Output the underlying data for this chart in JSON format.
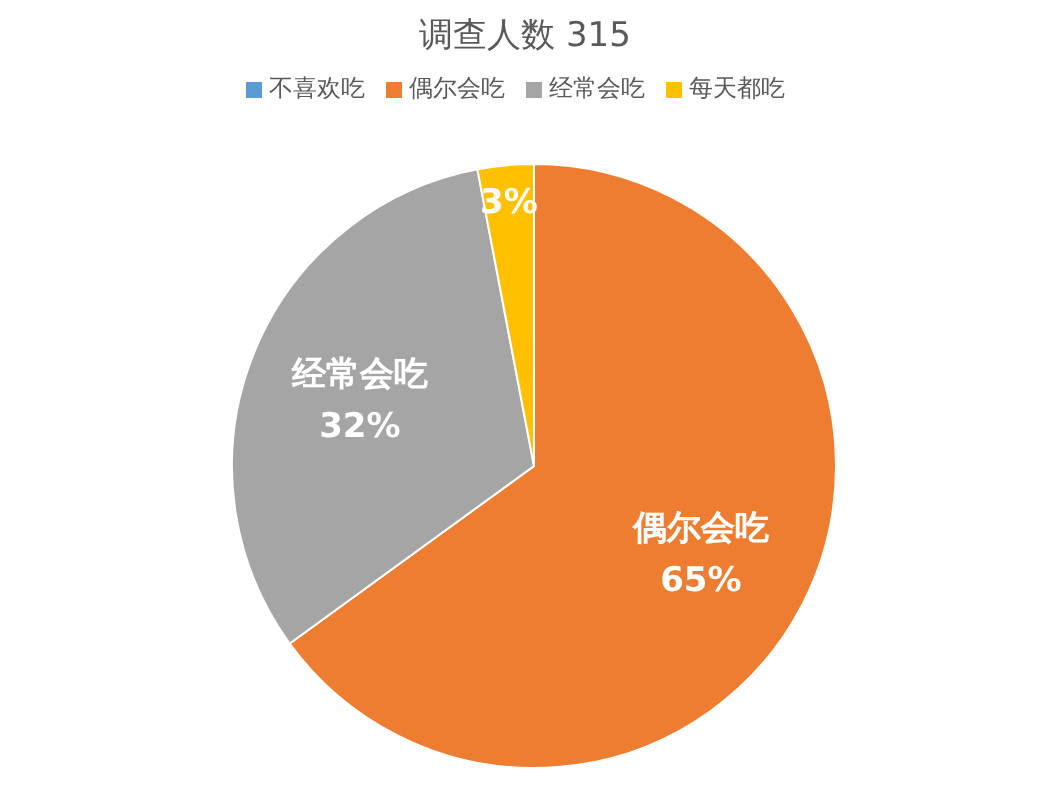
{
  "chart_data": {
    "type": "pie",
    "title": "调查人数 315",
    "categories": [
      "不喜欢吃",
      "偶尔会吃",
      "经常会吃",
      "每天都吃"
    ],
    "values": [
      0,
      65,
      32,
      3
    ],
    "colors": [
      "#5b9bd5",
      "#ed7d31",
      "#a5a5a5",
      "#ffc000"
    ],
    "value_labels": [
      null,
      "65%",
      "32%",
      "3%"
    ],
    "legend": "top"
  }
}
